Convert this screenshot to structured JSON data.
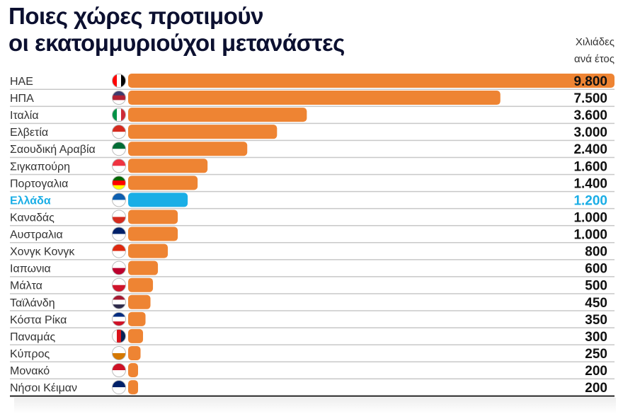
{
  "chart_data": {
    "type": "bar",
    "orientation": "horizontal",
    "title": "Ποιες χώρες προτιμούν οι εκατομμυριούχοι μετανάστες",
    "title_lines": [
      "Ποιες χώρες προτιμούν",
      "οι εκατομμυριούχοι μετανάστες"
    ],
    "unit_lines": [
      "Χιλιάδες",
      "ανά έτος"
    ],
    "categories": [
      "ΗΑΕ",
      "ΗΠΑ",
      "Ιταλία",
      "Ελβετία",
      "Σαουδική Αραβία",
      "Σιγκαπούρη",
      "Πορτογαλια",
      "Ελλάδα",
      "Καναδάς",
      "Αυστραλια",
      "Χονγκ Κονγκ",
      "Ιαπωνια",
      "Μάλτα",
      "Ταϊλάνδη",
      "Κόστα Ρίκα",
      "Παναμάς",
      "Κύπρος",
      "Μονακό",
      "Νήσοι Κέιμαν"
    ],
    "values": [
      9800,
      7500,
      3600,
      3000,
      2400,
      1600,
      1400,
      1200,
      1000,
      1000,
      800,
      600,
      500,
      450,
      350,
      300,
      250,
      200,
      200
    ],
    "value_labels": [
      "9.800",
      "7.500",
      "3.600",
      "3.000",
      "2.400",
      "1.600",
      "1.400",
      "1.200",
      "1.000",
      "1.000",
      "800",
      "600",
      "500",
      "450",
      "350",
      "300",
      "250",
      "200",
      "200"
    ],
    "highlight": "Ελλάδα",
    "colors": {
      "bar": "#ee8433",
      "highlight": "#1aaee6",
      "title": "#0c1030",
      "text": "#333333"
    },
    "flags": [
      "ae",
      "us",
      "it",
      "ch",
      "sa",
      "sg",
      "pt",
      "gr",
      "ca",
      "au",
      "hk",
      "jp",
      "mt",
      "th",
      "cr",
      "pa",
      "cy",
      "mc",
      "ky"
    ],
    "xlim": [
      0,
      9800
    ],
    "grid": false
  }
}
